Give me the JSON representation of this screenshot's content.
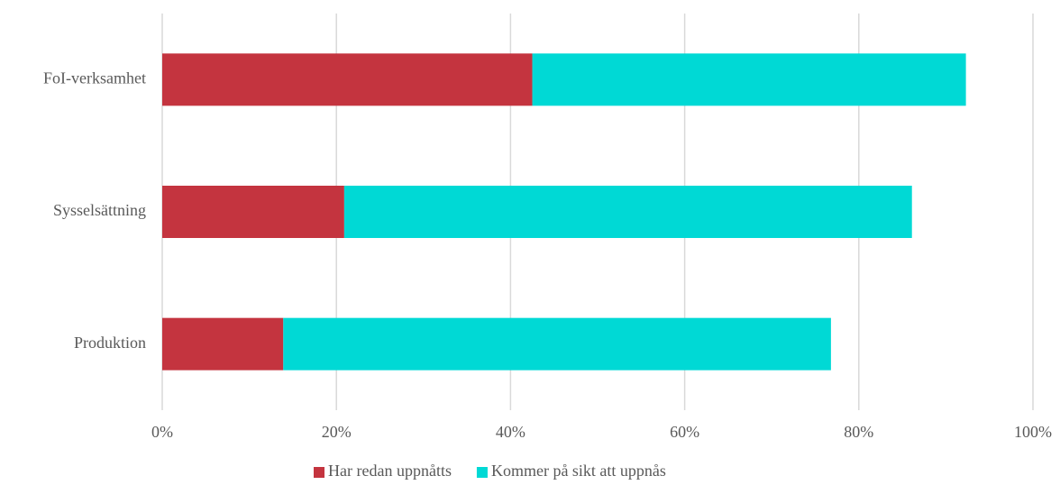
{
  "chart_data": {
    "type": "stacked_barh",
    "categories": [
      "FoI-verksamhet",
      "Sysselsättning",
      "Produktion"
    ],
    "series": [
      {
        "name": "Har redan uppnåtts",
        "color": "#c4343f",
        "values": [
          42.5,
          20.9,
          13.9
        ]
      },
      {
        "name": "Kommer på sikt att uppnås",
        "color": "#00d9d5",
        "values": [
          49.8,
          65.2,
          62.9
        ]
      }
    ],
    "xlim": [
      0,
      100
    ],
    "xticks": [
      {
        "value": 0,
        "label": "0%"
      },
      {
        "value": 20,
        "label": "20%"
      },
      {
        "value": 40,
        "label": "40%"
      },
      {
        "value": 60,
        "label": "60%"
      },
      {
        "value": 80,
        "label": "80%"
      },
      {
        "value": 100,
        "label": "100%"
      }
    ],
    "grid": true,
    "legend": "bottom"
  }
}
